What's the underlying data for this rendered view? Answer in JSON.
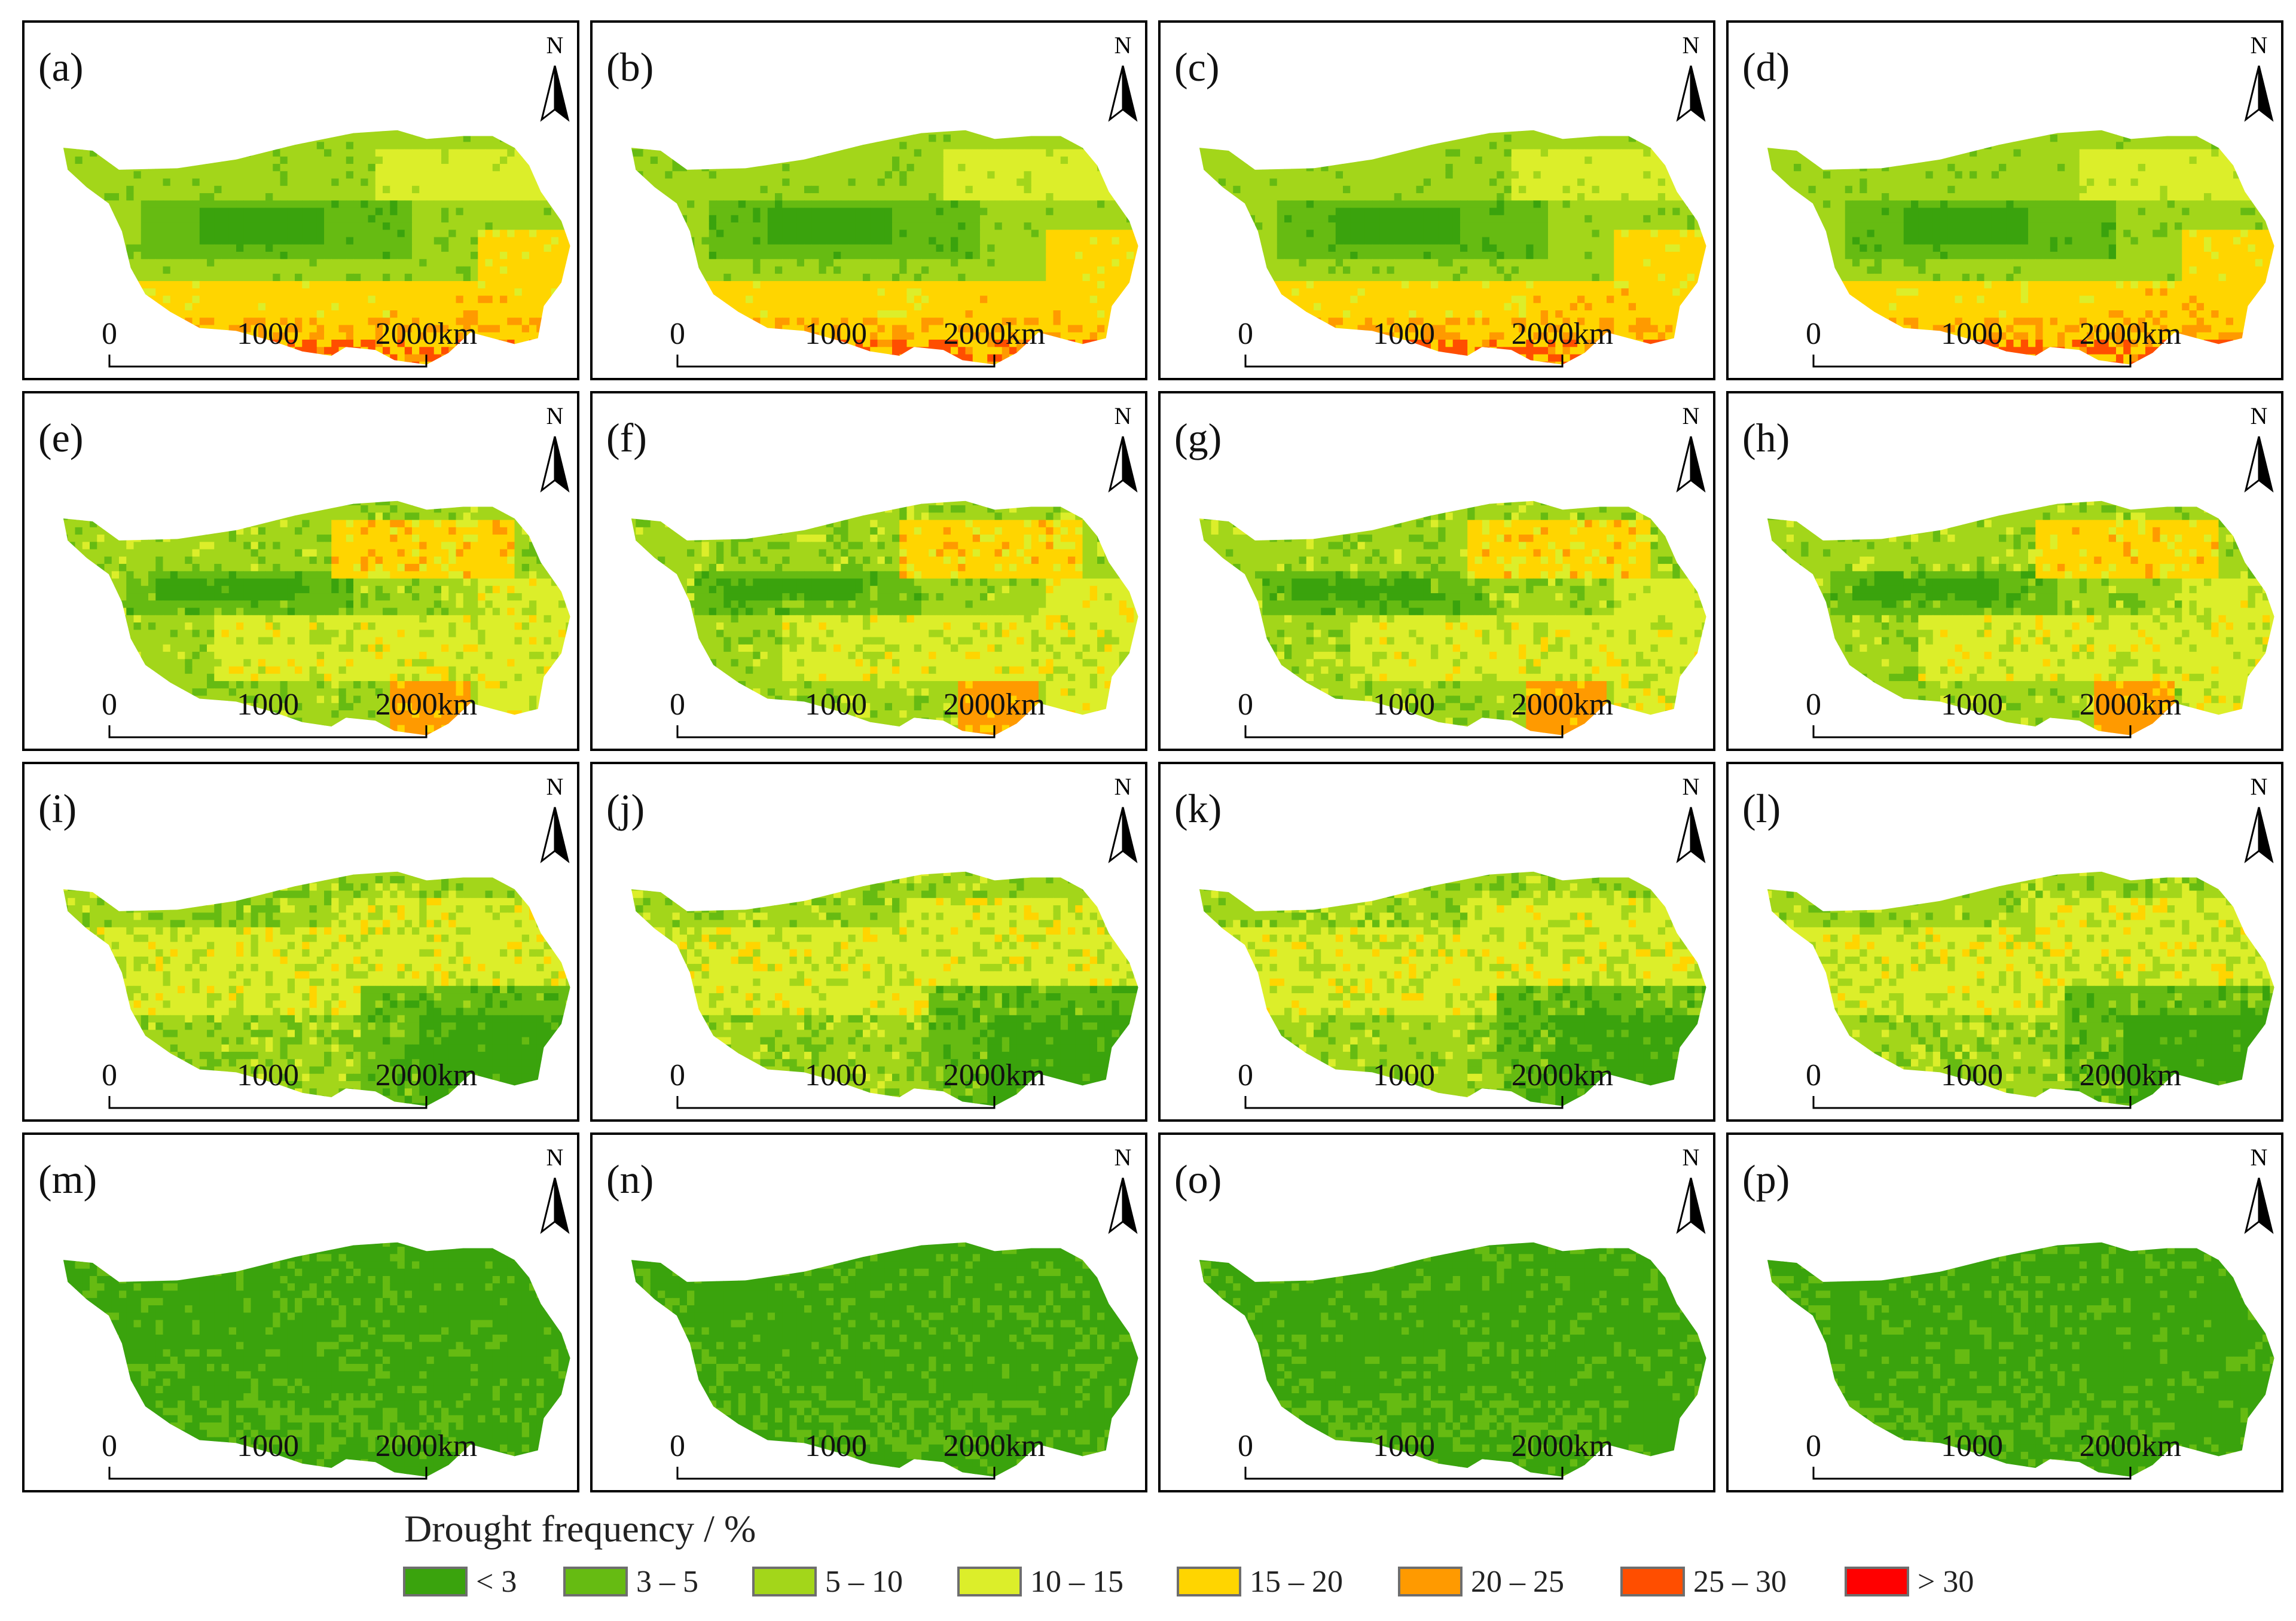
{
  "figure": {
    "panels": [
      {
        "label": "(a)",
        "north": "N",
        "scale": [
          "0",
          "1000",
          "2000km"
        ]
      },
      {
        "label": "(b)",
        "north": "N",
        "scale": [
          "0",
          "1000",
          "2000km"
        ]
      },
      {
        "label": "(c)",
        "north": "N",
        "scale": [
          "0",
          "1000",
          "2000km"
        ]
      },
      {
        "label": "(d)",
        "north": "N",
        "scale": [
          "0",
          "1000",
          "2000km"
        ]
      },
      {
        "label": "(e)",
        "north": "N",
        "scale": [
          "0",
          "1000",
          "2000km"
        ]
      },
      {
        "label": "(f)",
        "north": "N",
        "scale": [
          "0",
          "1000",
          "2000km"
        ]
      },
      {
        "label": "(g)",
        "north": "N",
        "scale": [
          "0",
          "1000",
          "2000km"
        ]
      },
      {
        "label": "(h)",
        "north": "N",
        "scale": [
          "0",
          "1000",
          "2000km"
        ]
      },
      {
        "label": "(i)",
        "north": "N",
        "scale": [
          "0",
          "1000",
          "2000km"
        ]
      },
      {
        "label": "(j)",
        "north": "N",
        "scale": [
          "0",
          "1000",
          "2000km"
        ]
      },
      {
        "label": "(k)",
        "north": "N",
        "scale": [
          "0",
          "1000",
          "2000km"
        ]
      },
      {
        "label": "(l)",
        "north": "N",
        "scale": [
          "0",
          "1000",
          "2000km"
        ]
      },
      {
        "label": "(m)",
        "north": "N",
        "scale": [
          "0",
          "1000",
          "2000km"
        ]
      },
      {
        "label": "(n)",
        "north": "N",
        "scale": [
          "0",
          "1000",
          "2000km"
        ]
      },
      {
        "label": "(o)",
        "north": "N",
        "scale": [
          "0",
          "1000",
          "2000km"
        ]
      },
      {
        "label": "(p)",
        "north": "N",
        "scale": [
          "0",
          "1000",
          "2000km"
        ]
      }
    ],
    "row_patterns": [
      "dry_south",
      "mixed_north",
      "wet_southeast",
      "uniform_low"
    ]
  },
  "legend": {
    "title": "Drought frequency / %",
    "items": [
      {
        "label": "< 3",
        "color": "#3aa30d"
      },
      {
        "label": "3 – 5",
        "color": "#66bb12"
      },
      {
        "label": "5 – 10",
        "color": "#a3d61a"
      },
      {
        "label": "10 – 15",
        "color": "#dcee2a"
      },
      {
        "label": "15 – 20",
        "color": "#ffd500"
      },
      {
        "label": "20 – 25",
        "color": "#ff9a00"
      },
      {
        "label": "25 – 30",
        "color": "#ff4e00"
      },
      {
        "label": "> 30",
        "color": "#ff0000"
      }
    ]
  }
}
